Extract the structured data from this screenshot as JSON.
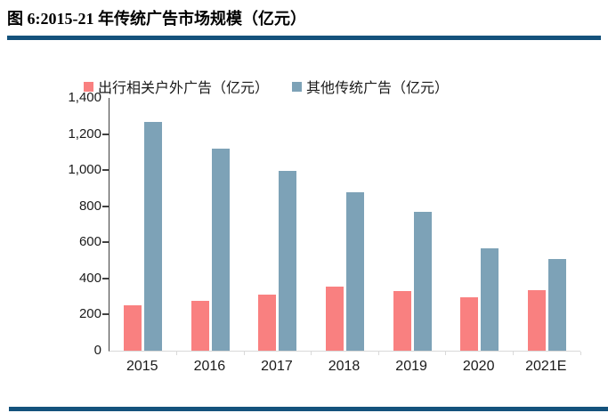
{
  "title": "图 6:2015-21 年传统广告市场规模（亿元）",
  "chart_data": {
    "type": "bar",
    "title": "图 6:2015-21 年传统广告市场规模（亿元）",
    "categories": [
      "2015",
      "2016",
      "2017",
      "2018",
      "2019",
      "2020",
      "2021E"
    ],
    "series": [
      {
        "name": "出行相关户外广告（亿元）",
        "color": "#F98080",
        "values": [
          250,
          275,
          310,
          355,
          330,
          295,
          335
        ]
      },
      {
        "name": "其他传统广告（亿元）",
        "color": "#7DA2B7",
        "values": [
          1265,
          1120,
          995,
          880,
          770,
          565,
          510
        ]
      }
    ],
    "xlabel": "",
    "ylabel": "",
    "ylim": [
      0,
      1400
    ],
    "yticks": [
      0,
      200,
      400,
      600,
      800,
      1000,
      1200,
      1400
    ],
    "ytick_labels": [
      "0",
      "200",
      "400",
      "600",
      "800",
      "1,000",
      "1,200",
      "1,400"
    ],
    "legend_position": "top",
    "grid": false
  },
  "colors": {
    "accent_rule": "#14527C",
    "axis_line": "#404040",
    "baseline": "#D9D9D9",
    "text": "#1A1A1A"
  }
}
